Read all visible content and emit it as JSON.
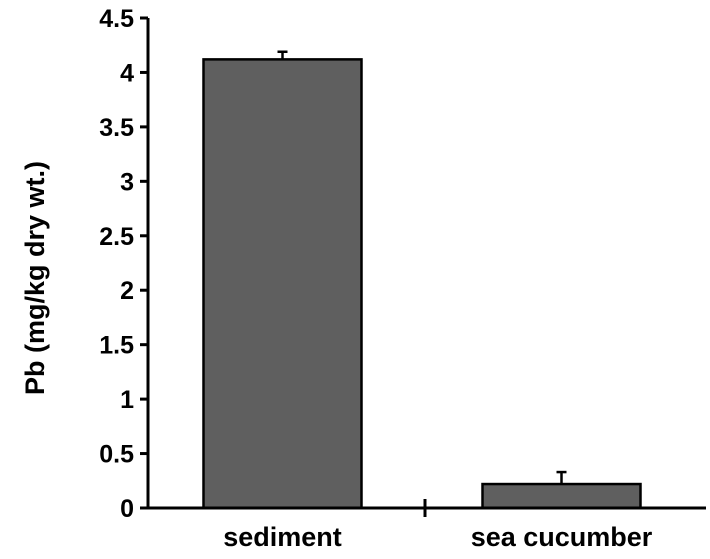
{
  "chart_data": {
    "type": "bar",
    "title": "",
    "xlabel": "",
    "ylabel": "Pb (mg/kg dry wt.)",
    "categories": [
      "sediment",
      "sea cucumber"
    ],
    "series": [
      {
        "values": [
          4.12,
          0.22
        ],
        "error_plus": [
          0.07,
          0.11
        ]
      }
    ],
    "ylim": [
      0,
      4.5
    ],
    "yticks": [
      0,
      0.5,
      1,
      1.5,
      2,
      2.5,
      3,
      3.5,
      4,
      4.5
    ],
    "ytick_labels": [
      "0",
      "0.5",
      "1",
      "1.5",
      "2",
      "2.5",
      "3",
      "3.5",
      "4",
      "4.5"
    ],
    "grid": false,
    "legend": "none",
    "colors": {
      "bar_fill": "#5f5f5f",
      "bar_stroke": "#000000",
      "axis": "#000000",
      "background": "#ffffff"
    }
  }
}
